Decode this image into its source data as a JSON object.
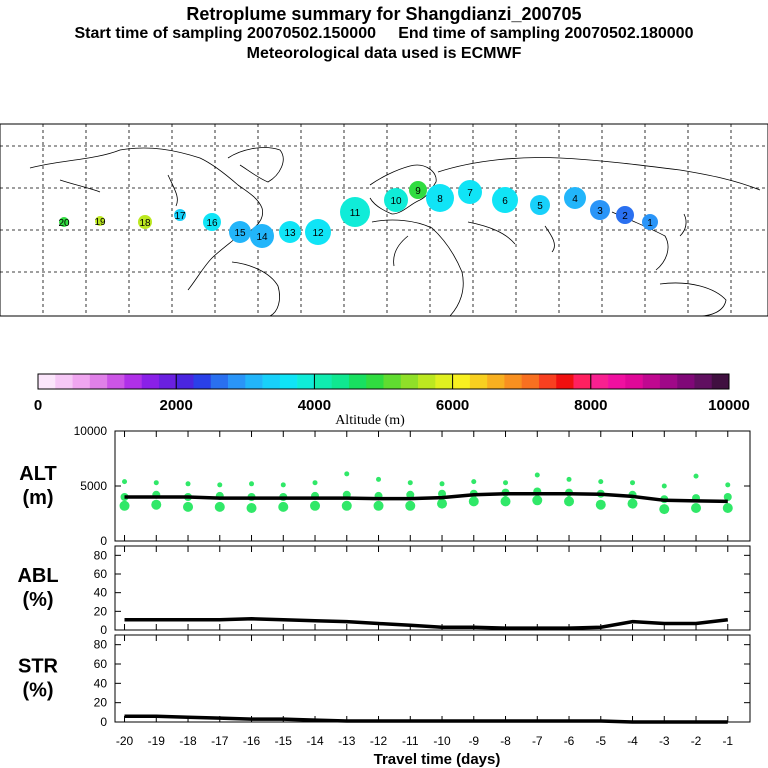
{
  "header": {
    "title": "Retroplume summary for Shangdianzi_200705",
    "subtitle": "Start time of sampling 20070502.150000     End time of sampling 20070502.180000",
    "met_line": "Meteorological data used is ECMWF"
  },
  "colorbar": {
    "label": "Altitude (m)",
    "ticks": [
      "0",
      "2000",
      "4000",
      "6000",
      "8000",
      "10000"
    ],
    "colors": [
      "#fbe6fb",
      "#f6c8f6",
      "#f0a6f0",
      "#e080e8",
      "#cc55e6",
      "#b030e8",
      "#8a20e8",
      "#6a20e0",
      "#4a25e0",
      "#2a40e8",
      "#2a70f0",
      "#2a95f8",
      "#22b5fa",
      "#18d0fa",
      "#10e4f6",
      "#10ecd8",
      "#10ecb0",
      "#10e890",
      "#18e060",
      "#30dc40",
      "#60dc30",
      "#90e028",
      "#bce820",
      "#e0f020",
      "#f8f020",
      "#f8d020",
      "#f8b020",
      "#f89020",
      "#f87020",
      "#f84020",
      "#f01010",
      "#ff2060",
      "#f82090",
      "#f010a0",
      "#e00898",
      "#c00890",
      "#a00888",
      "#800878",
      "#601060",
      "#401040"
    ]
  },
  "map": {
    "labels": [
      "20",
      "19",
      "18",
      "17",
      "16",
      "15",
      "14",
      "13",
      "12",
      "11",
      "10",
      "9",
      "8",
      "7",
      "6",
      "5",
      "4",
      "3",
      "2",
      "1"
    ]
  },
  "chart_data": [
    {
      "type": "line",
      "name": "ALT",
      "ylabel": "ALT\n(m)",
      "ylabel_lines": [
        "ALT",
        "(m)"
      ],
      "ylim": [
        0,
        10000
      ],
      "yticks": [
        "0",
        "5000",
        "10000"
      ],
      "x": [
        -20,
        -19,
        -18,
        -17,
        -16,
        -15,
        -14,
        -13,
        -12,
        -11,
        -10,
        -9,
        -8,
        -7,
        -6,
        -5,
        -4,
        -3,
        -2,
        -1
      ],
      "values": [
        4000,
        4000,
        4000,
        3900,
        3900,
        3900,
        3900,
        3900,
        3850,
        3850,
        3950,
        4200,
        4300,
        4300,
        4300,
        4250,
        4050,
        3700,
        3650,
        3600
      ],
      "scatter_values": [
        [
          3200,
          4000,
          5400
        ],
        [
          3300,
          4200,
          5300
        ],
        [
          3100,
          4000,
          5200
        ],
        [
          3100,
          4100,
          5100
        ],
        [
          3000,
          4000,
          5200
        ],
        [
          3100,
          4000,
          5100
        ],
        [
          3200,
          4100,
          5300
        ],
        [
          3200,
          4200,
          6100
        ],
        [
          3200,
          4100,
          5600
        ],
        [
          3200,
          4200,
          5300
        ],
        [
          3400,
          4300,
          5200
        ],
        [
          3600,
          4300,
          5400
        ],
        [
          3600,
          4400,
          5300
        ],
        [
          3700,
          4500,
          6000
        ],
        [
          3600,
          4400,
          5600
        ],
        [
          3300,
          4300,
          5400
        ],
        [
          3400,
          4200,
          5300
        ],
        [
          2900,
          3800,
          5000
        ],
        [
          3000,
          3900,
          5900
        ],
        [
          3000,
          4000,
          5100
        ]
      ]
    },
    {
      "type": "line",
      "name": "ABL",
      "ylabel": "ABL\n(%)",
      "ylabel_lines": [
        "ABL",
        "(%)"
      ],
      "ylim": [
        0,
        90
      ],
      "yticks": [
        "0",
        "20",
        "40",
        "60",
        "80"
      ],
      "x": [
        -20,
        -19,
        -18,
        -17,
        -16,
        -15,
        -14,
        -13,
        -12,
        -11,
        -10,
        -9,
        -8,
        -7,
        -6,
        -5,
        -4,
        -3,
        -2,
        -1
      ],
      "values": [
        11,
        11,
        11,
        11,
        12,
        11,
        10,
        9,
        7,
        5,
        3,
        3,
        2,
        2,
        2,
        3,
        9,
        7,
        7,
        11
      ]
    },
    {
      "type": "line",
      "name": "STR",
      "ylabel": "STR\n(%)",
      "ylabel_lines": [
        "STR",
        "(%)"
      ],
      "ylim": [
        0,
        90
      ],
      "yticks": [
        "0",
        "20",
        "40",
        "60",
        "80"
      ],
      "x": [
        -20,
        -19,
        -18,
        -17,
        -16,
        -15,
        -14,
        -13,
        -12,
        -11,
        -10,
        -9,
        -8,
        -7,
        -6,
        -5,
        -4,
        -3,
        -2,
        -1
      ],
      "values": [
        6,
        6,
        5,
        4,
        3,
        3,
        2,
        1,
        1,
        1,
        1,
        1,
        1,
        1,
        1,
        1,
        0,
        0,
        0,
        0
      ]
    }
  ],
  "xaxis": {
    "label": "Travel time (days)",
    "ticks": [
      "-20",
      "-19",
      "-18",
      "-17",
      "-16",
      "-15",
      "-14",
      "-13",
      "-12",
      "-11",
      "-10",
      "-9",
      "-8",
      "-7",
      "-6",
      "-5",
      "-4",
      "-3",
      "-2",
      "-1"
    ]
  }
}
